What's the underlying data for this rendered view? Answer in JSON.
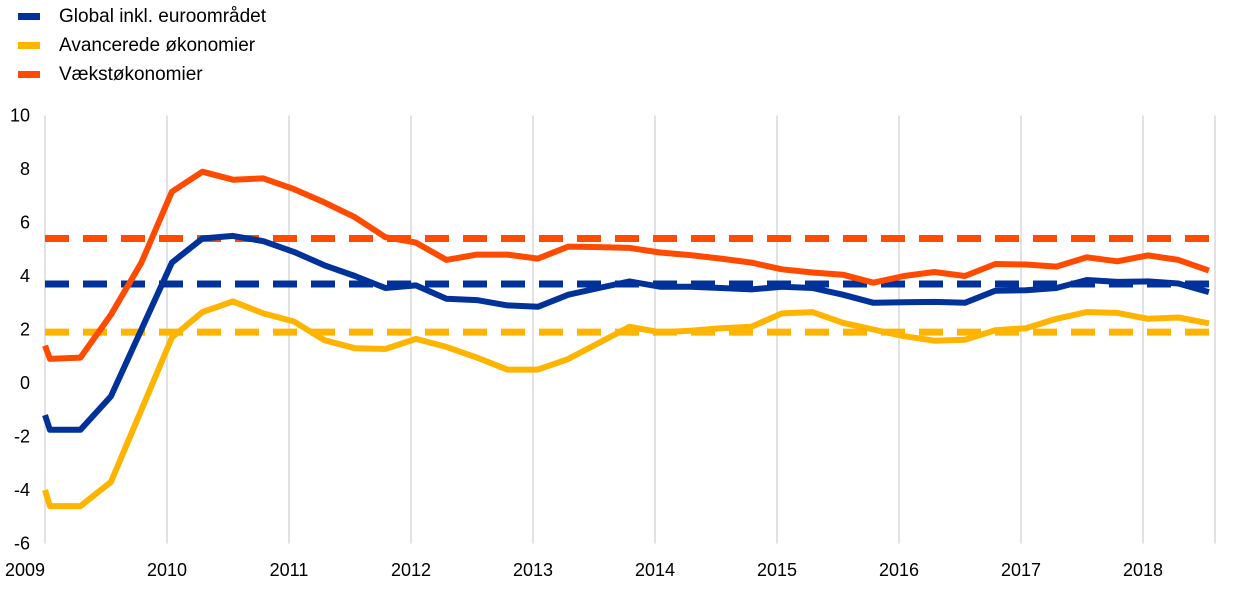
{
  "chart_data": {
    "type": "line",
    "title": "",
    "xlabel": "",
    "ylabel": "",
    "xlim": [
      2009,
      2018.6
    ],
    "ylim": [
      -6,
      10
    ],
    "yticks": [
      -6,
      -4,
      -2,
      0,
      2,
      4,
      6,
      8,
      10
    ],
    "xticks": [
      2009,
      2010,
      2011,
      2012,
      2013,
      2014,
      2015,
      2016,
      2017,
      2018
    ],
    "grid": "vertical",
    "legend_position": "top-left",
    "x": [
      2009.0,
      2009.04,
      2009.29,
      2009.54,
      2009.79,
      2010.04,
      2010.29,
      2010.54,
      2010.79,
      2011.04,
      2011.29,
      2011.54,
      2011.79,
      2012.04,
      2012.29,
      2012.54,
      2012.79,
      2013.04,
      2013.29,
      2013.54,
      2013.79,
      2014.04,
      2014.29,
      2014.54,
      2014.79,
      2015.04,
      2015.29,
      2015.54,
      2015.79,
      2016.04,
      2016.29,
      2016.54,
      2016.79,
      2017.04,
      2017.29,
      2017.54,
      2017.79,
      2018.04,
      2018.29,
      2018.54
    ],
    "series": [
      {
        "name": "Global inkl. euroområdet",
        "color": "#003299",
        "average": 3.7,
        "values": [
          -1.2,
          -1.75,
          -1.75,
          -0.5,
          2.0,
          4.5,
          5.4,
          5.5,
          5.3,
          4.9,
          4.4,
          4.0,
          3.55,
          3.65,
          3.15,
          3.1,
          2.9,
          2.85,
          3.3,
          3.55,
          3.8,
          3.6,
          3.6,
          3.55,
          3.5,
          3.6,
          3.55,
          3.3,
          3.0,
          3.02,
          3.03,
          3.0,
          3.45,
          3.47,
          3.55,
          3.85,
          3.78,
          3.8,
          3.72,
          3.4
        ]
      },
      {
        "name": "Avancerede økonomier",
        "color": "#FFB400",
        "average": 1.9,
        "values": [
          -4.0,
          -4.6,
          -4.6,
          -3.7,
          -1.0,
          1.7,
          2.65,
          3.05,
          2.6,
          2.3,
          1.6,
          1.3,
          1.27,
          1.65,
          1.35,
          0.95,
          0.5,
          0.5,
          0.9,
          1.5,
          2.1,
          1.9,
          1.95,
          2.05,
          2.1,
          2.6,
          2.65,
          2.25,
          2.0,
          1.75,
          1.58,
          1.62,
          1.97,
          2.05,
          2.4,
          2.65,
          2.62,
          2.4,
          2.45,
          2.23
        ]
      },
      {
        "name": "Vækstøkonomier",
        "color": "#FF4B00",
        "average": 5.4,
        "values": [
          1.4,
          0.9,
          0.95,
          2.55,
          4.5,
          7.15,
          7.9,
          7.6,
          7.65,
          7.25,
          6.75,
          6.2,
          5.45,
          5.25,
          4.6,
          4.8,
          4.8,
          4.65,
          5.1,
          5.08,
          5.05,
          4.88,
          4.78,
          4.65,
          4.5,
          4.25,
          4.13,
          4.05,
          3.75,
          4.0,
          4.15,
          4.0,
          4.45,
          4.43,
          4.35,
          4.7,
          4.55,
          4.77,
          4.6,
          4.2
        ]
      }
    ]
  }
}
